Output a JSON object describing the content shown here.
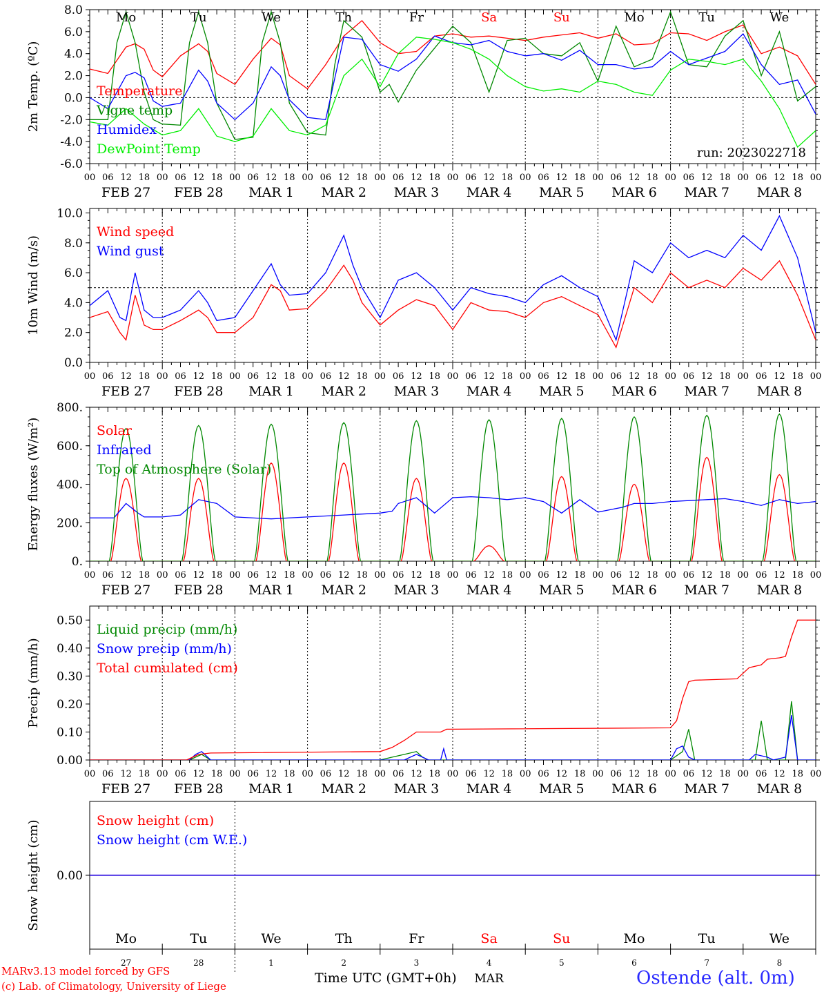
{
  "figure": {
    "run_label": "run: 2023022718",
    "credit_line1": "MARv3.13 model forced by GFS",
    "credit_line2": "(c) Lab. of Climatology, University of Liege",
    "time_axis_title": "Time UTC (GMT+0h)",
    "month_label": "MAR",
    "station": "Ostende (alt. 0m)"
  },
  "colors": {
    "temperature": "#ff0000",
    "vigne_temp": "#008800",
    "humidex": "#0000ff",
    "dewpoint": "#00ee00",
    "wind_speed": "#ff0000",
    "wind_gust": "#0000ff",
    "solar": "#ff0000",
    "infrared": "#0000ff",
    "toa_solar": "#008800",
    "liquid_precip": "#008800",
    "snow_precip": "#0000ff",
    "total_cumulated": "#ff0000",
    "snow_height": "#ff0000",
    "snow_height_we": "#0000ff",
    "weekend_day": "#ff0000",
    "weekday": "#000000",
    "station": "#2a2aff"
  },
  "days": {
    "weekday_labels": [
      "Mo",
      "Tu",
      "We",
      "Th",
      "Fr",
      "Sa",
      "Su",
      "Mo",
      "Tu",
      "We"
    ],
    "weekend_flags": [
      false,
      false,
      false,
      false,
      false,
      true,
      true,
      false,
      false,
      false
    ],
    "date_labels": [
      "FEB 27",
      "FEB 28",
      "MAR  1",
      "MAR  2",
      "MAR  3",
      "MAR  4",
      "MAR  5",
      "MAR  6",
      "MAR  7",
      "MAR  8"
    ],
    "day_numbers": [
      "27",
      "28",
      "1",
      "2",
      "3",
      "4",
      "5",
      "6",
      "7",
      "8"
    ],
    "hour_ticks": [
      "00",
      "06",
      "12",
      "18"
    ],
    "final_tick": "00"
  },
  "chart_data": [
    {
      "type": "line",
      "ylabel": "2m Temp. (ºC)",
      "x_unit": "hours since FEB 27 00 UTC",
      "ylim": [
        -6.0,
        8.0
      ],
      "yticks": [
        "8.0",
        "6.0",
        "4.0",
        "2.0",
        "0.0",
        "-2.0",
        "-4.0",
        "-6.0"
      ],
      "reference_line": 0.0,
      "series": [
        {
          "name": "Temperature",
          "color_key": "temperature",
          "x": [
            0,
            6,
            12,
            15,
            18,
            21,
            24,
            30,
            36,
            39,
            42,
            48,
            54,
            60,
            63,
            66,
            72,
            78,
            84,
            90,
            96,
            102,
            108,
            114,
            120,
            126,
            132,
            138,
            144,
            150,
            156,
            162,
            168,
            174,
            180,
            186,
            192,
            198,
            204,
            210,
            216,
            222,
            228,
            234,
            240
          ],
          "y": [
            2.6,
            2.2,
            4.6,
            4.9,
            4.4,
            2.5,
            1.9,
            3.8,
            4.9,
            4.2,
            2.2,
            1.2,
            3.5,
            5.4,
            4.8,
            2.0,
            0.8,
            3.0,
            5.6,
            7.0,
            5.0,
            4.0,
            4.2,
            5.6,
            5.8,
            5.5,
            5.6,
            5.4,
            5.2,
            5.5,
            5.7,
            5.9,
            5.4,
            5.8,
            4.8,
            4.9,
            5.9,
            5.8,
            5.2,
            6.0,
            6.6,
            4.0,
            4.6,
            3.8,
            1.2
          ]
        },
        {
          "name": "Vigne temp",
          "color_key": "vigne_temp",
          "x": [
            0,
            6,
            9,
            12,
            15,
            18,
            21,
            24,
            30,
            33,
            36,
            39,
            42,
            48,
            54,
            57,
            60,
            63,
            66,
            72,
            78,
            81,
            84,
            90,
            96,
            99,
            102,
            108,
            114,
            120,
            126,
            132,
            138,
            144,
            150,
            156,
            162,
            168,
            174,
            180,
            186,
            192,
            198,
            204,
            210,
            216,
            222,
            228,
            234,
            240
          ],
          "y": [
            -2.0,
            -2.0,
            5.0,
            7.8,
            5.0,
            0.5,
            -2.0,
            -2.4,
            -2.5,
            5.0,
            7.8,
            5.0,
            -0.5,
            -3.8,
            -3.6,
            5.0,
            7.8,
            5.0,
            -0.5,
            -3.2,
            -3.4,
            3.0,
            7.0,
            5.5,
            0.5,
            1.2,
            -0.4,
            2.5,
            4.5,
            6.5,
            5.0,
            0.5,
            5.2,
            5.4,
            4.0,
            3.8,
            5.0,
            1.5,
            6.5,
            2.8,
            3.5,
            7.8,
            3.0,
            2.8,
            5.6,
            7.0,
            2.0,
            6.0,
            -0.3,
            1.0
          ]
        },
        {
          "name": "Humidex",
          "color_key": "humidex",
          "x": [
            0,
            6,
            12,
            15,
            18,
            21,
            24,
            30,
            36,
            39,
            42,
            48,
            54,
            60,
            63,
            66,
            72,
            78,
            84,
            90,
            96,
            102,
            108,
            114,
            120,
            126,
            132,
            138,
            144,
            150,
            156,
            162,
            168,
            174,
            180,
            186,
            192,
            198,
            204,
            210,
            216,
            222,
            228,
            234,
            240
          ],
          "y": [
            0.0,
            -1.0,
            2.0,
            2.3,
            1.8,
            -0.3,
            -0.8,
            -0.5,
            2.5,
            1.5,
            -0.5,
            -2.0,
            -0.5,
            2.8,
            2.0,
            -0.2,
            -1.8,
            -2.0,
            5.5,
            5.3,
            3.0,
            2.4,
            3.5,
            5.6,
            5.0,
            4.8,
            5.2,
            4.2,
            3.8,
            4.0,
            3.4,
            4.3,
            3.0,
            3.0,
            2.6,
            2.8,
            4.2,
            3.0,
            3.6,
            4.2,
            5.8,
            3.0,
            1.2,
            1.6,
            -1.5
          ]
        },
        {
          "name": "DewPoint Temp",
          "color_key": "dewpoint",
          "x": [
            0,
            6,
            12,
            18,
            24,
            30,
            36,
            42,
            48,
            54,
            60,
            66,
            72,
            78,
            84,
            90,
            96,
            102,
            108,
            114,
            120,
            126,
            132,
            138,
            144,
            150,
            156,
            162,
            168,
            174,
            180,
            186,
            192,
            198,
            204,
            210,
            216,
            222,
            228,
            234,
            240
          ],
          "y": [
            -2.2,
            -2.5,
            -1.0,
            -2.4,
            -3.4,
            -3.0,
            -1.0,
            -3.5,
            -4.0,
            -3.5,
            -1.0,
            -3.0,
            -3.4,
            -2.5,
            2.0,
            3.5,
            1.0,
            4.0,
            5.5,
            5.3,
            5.0,
            4.4,
            3.5,
            2.0,
            1.0,
            0.6,
            0.8,
            0.5,
            1.5,
            1.2,
            0.5,
            0.2,
            2.5,
            3.5,
            3.3,
            3.0,
            3.5,
            1.5,
            -1.0,
            -4.5,
            -3.0
          ]
        }
      ]
    },
    {
      "type": "line",
      "ylabel": "10m Wind (m/s)",
      "x_unit": "hours since FEB 27 00 UTC",
      "ylim": [
        0.0,
        10.0
      ],
      "yticks": [
        "10.0",
        "8.0",
        "6.0",
        "4.0",
        "2.0",
        "0.0"
      ],
      "reference_line": 5.0,
      "series": [
        {
          "name": "Wind speed",
          "color_key": "wind_speed",
          "x": [
            0,
            6,
            10,
            12,
            15,
            18,
            21,
            24,
            30,
            36,
            39,
            42,
            48,
            54,
            60,
            63,
            66,
            72,
            78,
            84,
            87,
            90,
            96,
            102,
            108,
            114,
            120,
            126,
            132,
            138,
            144,
            150,
            156,
            162,
            168,
            174,
            180,
            186,
            192,
            198,
            204,
            210,
            216,
            222,
            228,
            234,
            240
          ],
          "y": [
            3.0,
            3.4,
            2.0,
            1.5,
            4.5,
            2.5,
            2.2,
            2.2,
            2.8,
            3.5,
            3.0,
            2.0,
            2.0,
            3.0,
            5.2,
            4.8,
            3.5,
            3.6,
            4.8,
            6.5,
            5.5,
            4.0,
            2.5,
            3.5,
            4.2,
            3.8,
            2.2,
            4.0,
            3.5,
            3.4,
            3.0,
            4.0,
            4.4,
            3.8,
            3.2,
            1.0,
            5.0,
            4.0,
            6.0,
            5.0,
            5.5,
            5.0,
            6.3,
            5.5,
            6.8,
            4.5,
            1.5
          ]
        },
        {
          "name": "Wind gust",
          "color_key": "wind_gust",
          "x": [
            0,
            6,
            10,
            12,
            15,
            18,
            21,
            24,
            30,
            36,
            39,
            42,
            48,
            54,
            60,
            63,
            66,
            72,
            78,
            84,
            87,
            90,
            96,
            102,
            108,
            114,
            120,
            126,
            132,
            138,
            144,
            150,
            156,
            162,
            168,
            174,
            180,
            186,
            192,
            198,
            204,
            210,
            216,
            222,
            228,
            234,
            240
          ],
          "y": [
            3.8,
            4.8,
            3.0,
            2.8,
            6.0,
            3.5,
            3.0,
            3.0,
            3.5,
            4.8,
            4.0,
            2.8,
            3.0,
            4.8,
            6.6,
            5.2,
            4.5,
            4.6,
            6.0,
            8.5,
            6.5,
            5.0,
            3.0,
            5.5,
            6.0,
            5.0,
            3.5,
            5.0,
            4.6,
            4.4,
            4.0,
            5.2,
            5.8,
            5.0,
            4.4,
            1.5,
            6.8,
            6.0,
            8.0,
            7.0,
            7.5,
            7.0,
            8.5,
            7.5,
            9.8,
            7.0,
            2.0
          ]
        }
      ]
    },
    {
      "type": "line",
      "ylabel": "Energy fluxes (W/m²)",
      "x_unit": "hours since FEB 27 00 UTC",
      "ylim": [
        0,
        800
      ],
      "yticks": [
        "800.",
        "600.",
        "400.",
        "200.",
        "0."
      ],
      "series": [
        {
          "name": "Solar",
          "color_key": "solar",
          "daily_peaks": [
            430,
            430,
            510,
            510,
            430,
            80,
            440,
            400,
            540,
            450
          ],
          "sunrise_hour": 7,
          "sunset_hour": 17
        },
        {
          "name": "Infrared",
          "color_key": "infrared",
          "x": [
            0,
            8,
            12,
            16,
            18,
            24,
            30,
            36,
            42,
            48,
            60,
            72,
            84,
            96,
            100,
            102,
            108,
            114,
            120,
            126,
            132,
            138,
            144,
            150,
            156,
            162,
            168,
            176,
            180,
            186,
            192,
            198,
            204,
            210,
            216,
            222,
            228,
            234,
            240
          ],
          "y": [
            225,
            225,
            300,
            250,
            230,
            230,
            240,
            320,
            300,
            230,
            220,
            230,
            240,
            250,
            260,
            300,
            330,
            250,
            330,
            335,
            330,
            320,
            330,
            310,
            250,
            320,
            255,
            280,
            300,
            300,
            310,
            315,
            320,
            325,
            310,
            290,
            320,
            300,
            310
          ]
        },
        {
          "name": "Top of Atmosphere (Solar)",
          "color_key": "toa_solar",
          "daily_peaks": [
            690,
            705,
            712,
            720,
            730,
            735,
            742,
            750,
            758,
            765
          ],
          "sunrise_hour": 6.5,
          "sunset_hour": 17.5
        }
      ]
    },
    {
      "type": "line",
      "ylabel": "Precip (mm/h)",
      "x_unit": "hours since FEB 27 00 UTC",
      "ylim": [
        0.0,
        0.55
      ],
      "yticks": [
        "0.50",
        "0.40",
        "0.30",
        "0.20",
        "0.10",
        "0.00"
      ],
      "series": [
        {
          "name": "Liquid precip (mm/h)",
          "color_key": "liquid_precip",
          "x": [
            0,
            33,
            35,
            37,
            40,
            96,
            100,
            104,
            108,
            110,
            112,
            192,
            196,
            198,
            200,
            220,
            222,
            224,
            230,
            232,
            234,
            240
          ],
          "y": [
            0,
            0,
            0.01,
            0.02,
            0,
            0,
            0.01,
            0.02,
            0.03,
            0.01,
            0,
            0,
            0.03,
            0.11,
            0,
            0,
            0.14,
            0,
            0,
            0.21,
            0,
            0
          ]
        },
        {
          "name": "Snow precip (mm/h)",
          "color_key": "snow_precip",
          "x": [
            0,
            33,
            35,
            37,
            40,
            96,
            104,
            106,
            108,
            110,
            112,
            116,
            117,
            118,
            192,
            194,
            196,
            198,
            200,
            218,
            220,
            224,
            226,
            230,
            232,
            234,
            240
          ],
          "y": [
            0,
            0,
            0.02,
            0.03,
            0,
            0,
            0,
            0.01,
            0.02,
            0.01,
            0,
            0,
            0.04,
            0,
            0,
            0.04,
            0.05,
            0.01,
            0,
            0,
            0.02,
            0.01,
            0,
            0.01,
            0.16,
            0,
            0
          ]
        },
        {
          "name": "Total cumulated (cm)",
          "color_key": "total_cumulated",
          "x": [
            0,
            32,
            36,
            40,
            96,
            100,
            104,
            108,
            112,
            116,
            118,
            120,
            192,
            194,
            196,
            198,
            200,
            214,
            216,
            218,
            222,
            224,
            228,
            230,
            232,
            234,
            240
          ],
          "y": [
            0,
            0,
            0.02,
            0.025,
            0.03,
            0.045,
            0.07,
            0.1,
            0.1,
            0.1,
            0.11,
            0.11,
            0.115,
            0.14,
            0.22,
            0.28,
            0.285,
            0.29,
            0.31,
            0.33,
            0.34,
            0.36,
            0.365,
            0.37,
            0.44,
            0.5,
            0.5
          ]
        }
      ]
    },
    {
      "type": "line",
      "ylabel": "Snow height (cm)",
      "x_unit": "hours since FEB 27 00 UTC",
      "yticks": [
        "0.00"
      ],
      "series": [
        {
          "name": "Snow height (cm)",
          "color_key": "snow_height",
          "x": [
            0,
            240
          ],
          "y": [
            0.0,
            0.0
          ]
        },
        {
          "name": "Snow height (cm W.E.)",
          "color_key": "snow_height_we",
          "x": [
            0,
            240
          ],
          "y": [
            0.0,
            0.0
          ]
        }
      ]
    }
  ]
}
